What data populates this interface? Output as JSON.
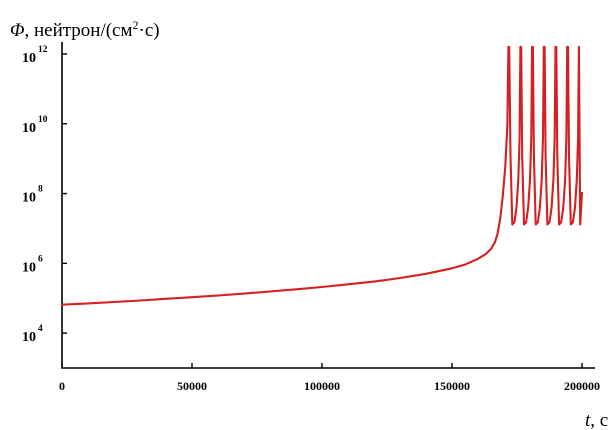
{
  "chart_data": {
    "type": "line",
    "title": "",
    "ylabel": {
      "symbol": "Φ",
      "unit_pre": ", нейтрон/(см",
      "unit_sup": "2",
      "unit_post": "·с)"
    },
    "xlabel": {
      "symbol": "t",
      "unit": ", с"
    },
    "xlim": [
      0,
      200000
    ],
    "ylim": [
      1000,
      1000000000000.0
    ],
    "y_scale": "log",
    "x_ticks": [
      {
        "value": 0,
        "label": "0"
      },
      {
        "value": 50000,
        "label": "50000"
      },
      {
        "value": 100000,
        "label": "100000"
      },
      {
        "value": 150000,
        "label": "150000"
      },
      {
        "value": 200000,
        "label": "200000"
      }
    ],
    "y_ticks": [
      {
        "value": 10000.0,
        "base": "10",
        "exp": "4"
      },
      {
        "value": 1000000.0,
        "base": "10",
        "exp": "6"
      },
      {
        "value": 100000000.0,
        "base": "10",
        "exp": "8"
      },
      {
        "value": 10000000000.0,
        "base": "10",
        "exp": "10"
      },
      {
        "value": 1000000000000.0,
        "base": "10",
        "exp": "12"
      }
    ],
    "grid": false,
    "legend": "none",
    "series": [
      {
        "color": "#d42020",
        "x": [
          0,
          10000,
          20000,
          30000,
          40000,
          50000,
          60000,
          70000,
          80000,
          90000,
          100000,
          110000,
          120000,
          130000,
          140000,
          150000,
          155000,
          160000,
          163000,
          165000,
          166500,
          167500,
          168500,
          169500,
          170500,
          171300,
          171700,
          172000,
          172500,
          173200,
          174000,
          174800,
          175500,
          176000,
          176300,
          176600,
          177000,
          177700,
          178500,
          179300,
          180000,
          180500,
          180800,
          181100,
          181500,
          182200,
          183000,
          183800,
          184500,
          185000,
          185300,
          185600,
          186000,
          186700,
          187500,
          188300,
          189000,
          189500,
          189800,
          190100,
          190500,
          191200,
          192000,
          192800,
          193500,
          194000,
          194300,
          194600,
          195000,
          195700,
          196500,
          197300,
          198000,
          198500,
          198800,
          199300,
          200000
        ],
        "y": [
          65000.0,
          71000.0,
          78000.0,
          86000.0,
          96000.0,
          107000.0,
          120000.0,
          136000.0,
          156000.0,
          180000.0,
          210000.0,
          250000.0,
          300000.0,
          380000.0,
          500000.0,
          720000.0,
          920000.0,
          1350000.0,
          1850000.0,
          2600000.0,
          4000000.0,
          7000000.0,
          18000000.0,
          80000000.0,
          600000000.0,
          10000000000.0,
          1600000000000.0,
          1600000000000.0,
          1200000000.0,
          13000000.0,
          15000000.0,
          40000000.0,
          250000000.0,
          4000000000.0,
          1600000000000.0,
          1600000000000.0,
          1200000000.0,
          13000000.0,
          15000000.0,
          40000000.0,
          250000000.0,
          4000000000.0,
          1600000000000.0,
          1600000000000.0,
          1200000000.0,
          13000000.0,
          15000000.0,
          40000000.0,
          250000000.0,
          4000000000.0,
          1600000000000.0,
          1600000000000.0,
          1200000000.0,
          13000000.0,
          15000000.0,
          40000000.0,
          250000000.0,
          4000000000.0,
          1600000000000.0,
          1600000000000.0,
          1200000000.0,
          13000000.0,
          15000000.0,
          40000000.0,
          250000000.0,
          4000000000.0,
          1600000000000.0,
          1600000000000.0,
          1200000000.0,
          13000000.0,
          15000000.0,
          40000000.0,
          250000000.0,
          4000000000.0,
          1600000000000.0,
          13000000.0,
          105000000.0
        ]
      }
    ]
  }
}
